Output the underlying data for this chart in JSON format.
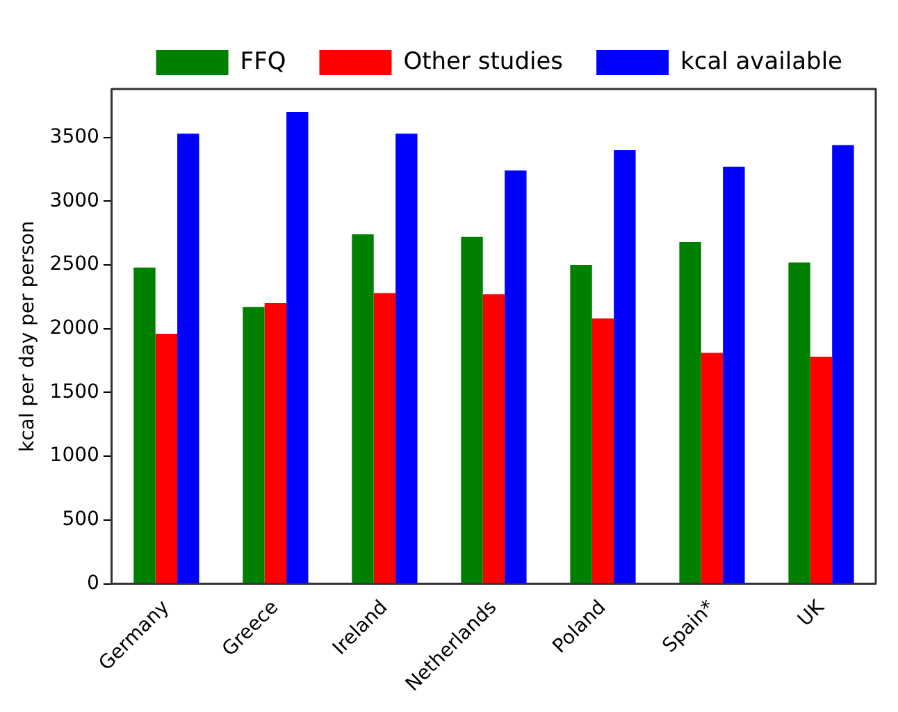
{
  "chart_data": {
    "type": "bar",
    "ylabel": "kcal per day per person",
    "categories": [
      "Germany",
      "Greece",
      "Ireland",
      "Netherlands",
      "Poland",
      "Spain*",
      "UK"
    ],
    "series": [
      {
        "name": "FFQ",
        "color": "#008000",
        "values": [
          2480,
          2170,
          2740,
          2720,
          2500,
          2680,
          2520
        ]
      },
      {
        "name": "Other studies",
        "color": "#ff0000",
        "values": [
          1960,
          2200,
          2280,
          2270,
          2080,
          1810,
          1780
        ]
      },
      {
        "name": "kcal available",
        "color": "#0000ff",
        "values": [
          3530,
          3700,
          3530,
          3240,
          3400,
          3270,
          3440
        ]
      }
    ],
    "ylim": [
      0,
      3880
    ],
    "yticks": [
      0,
      500,
      1000,
      1500,
      2000,
      2500,
      3000,
      3500
    ],
    "grid": false,
    "legend": "top"
  }
}
